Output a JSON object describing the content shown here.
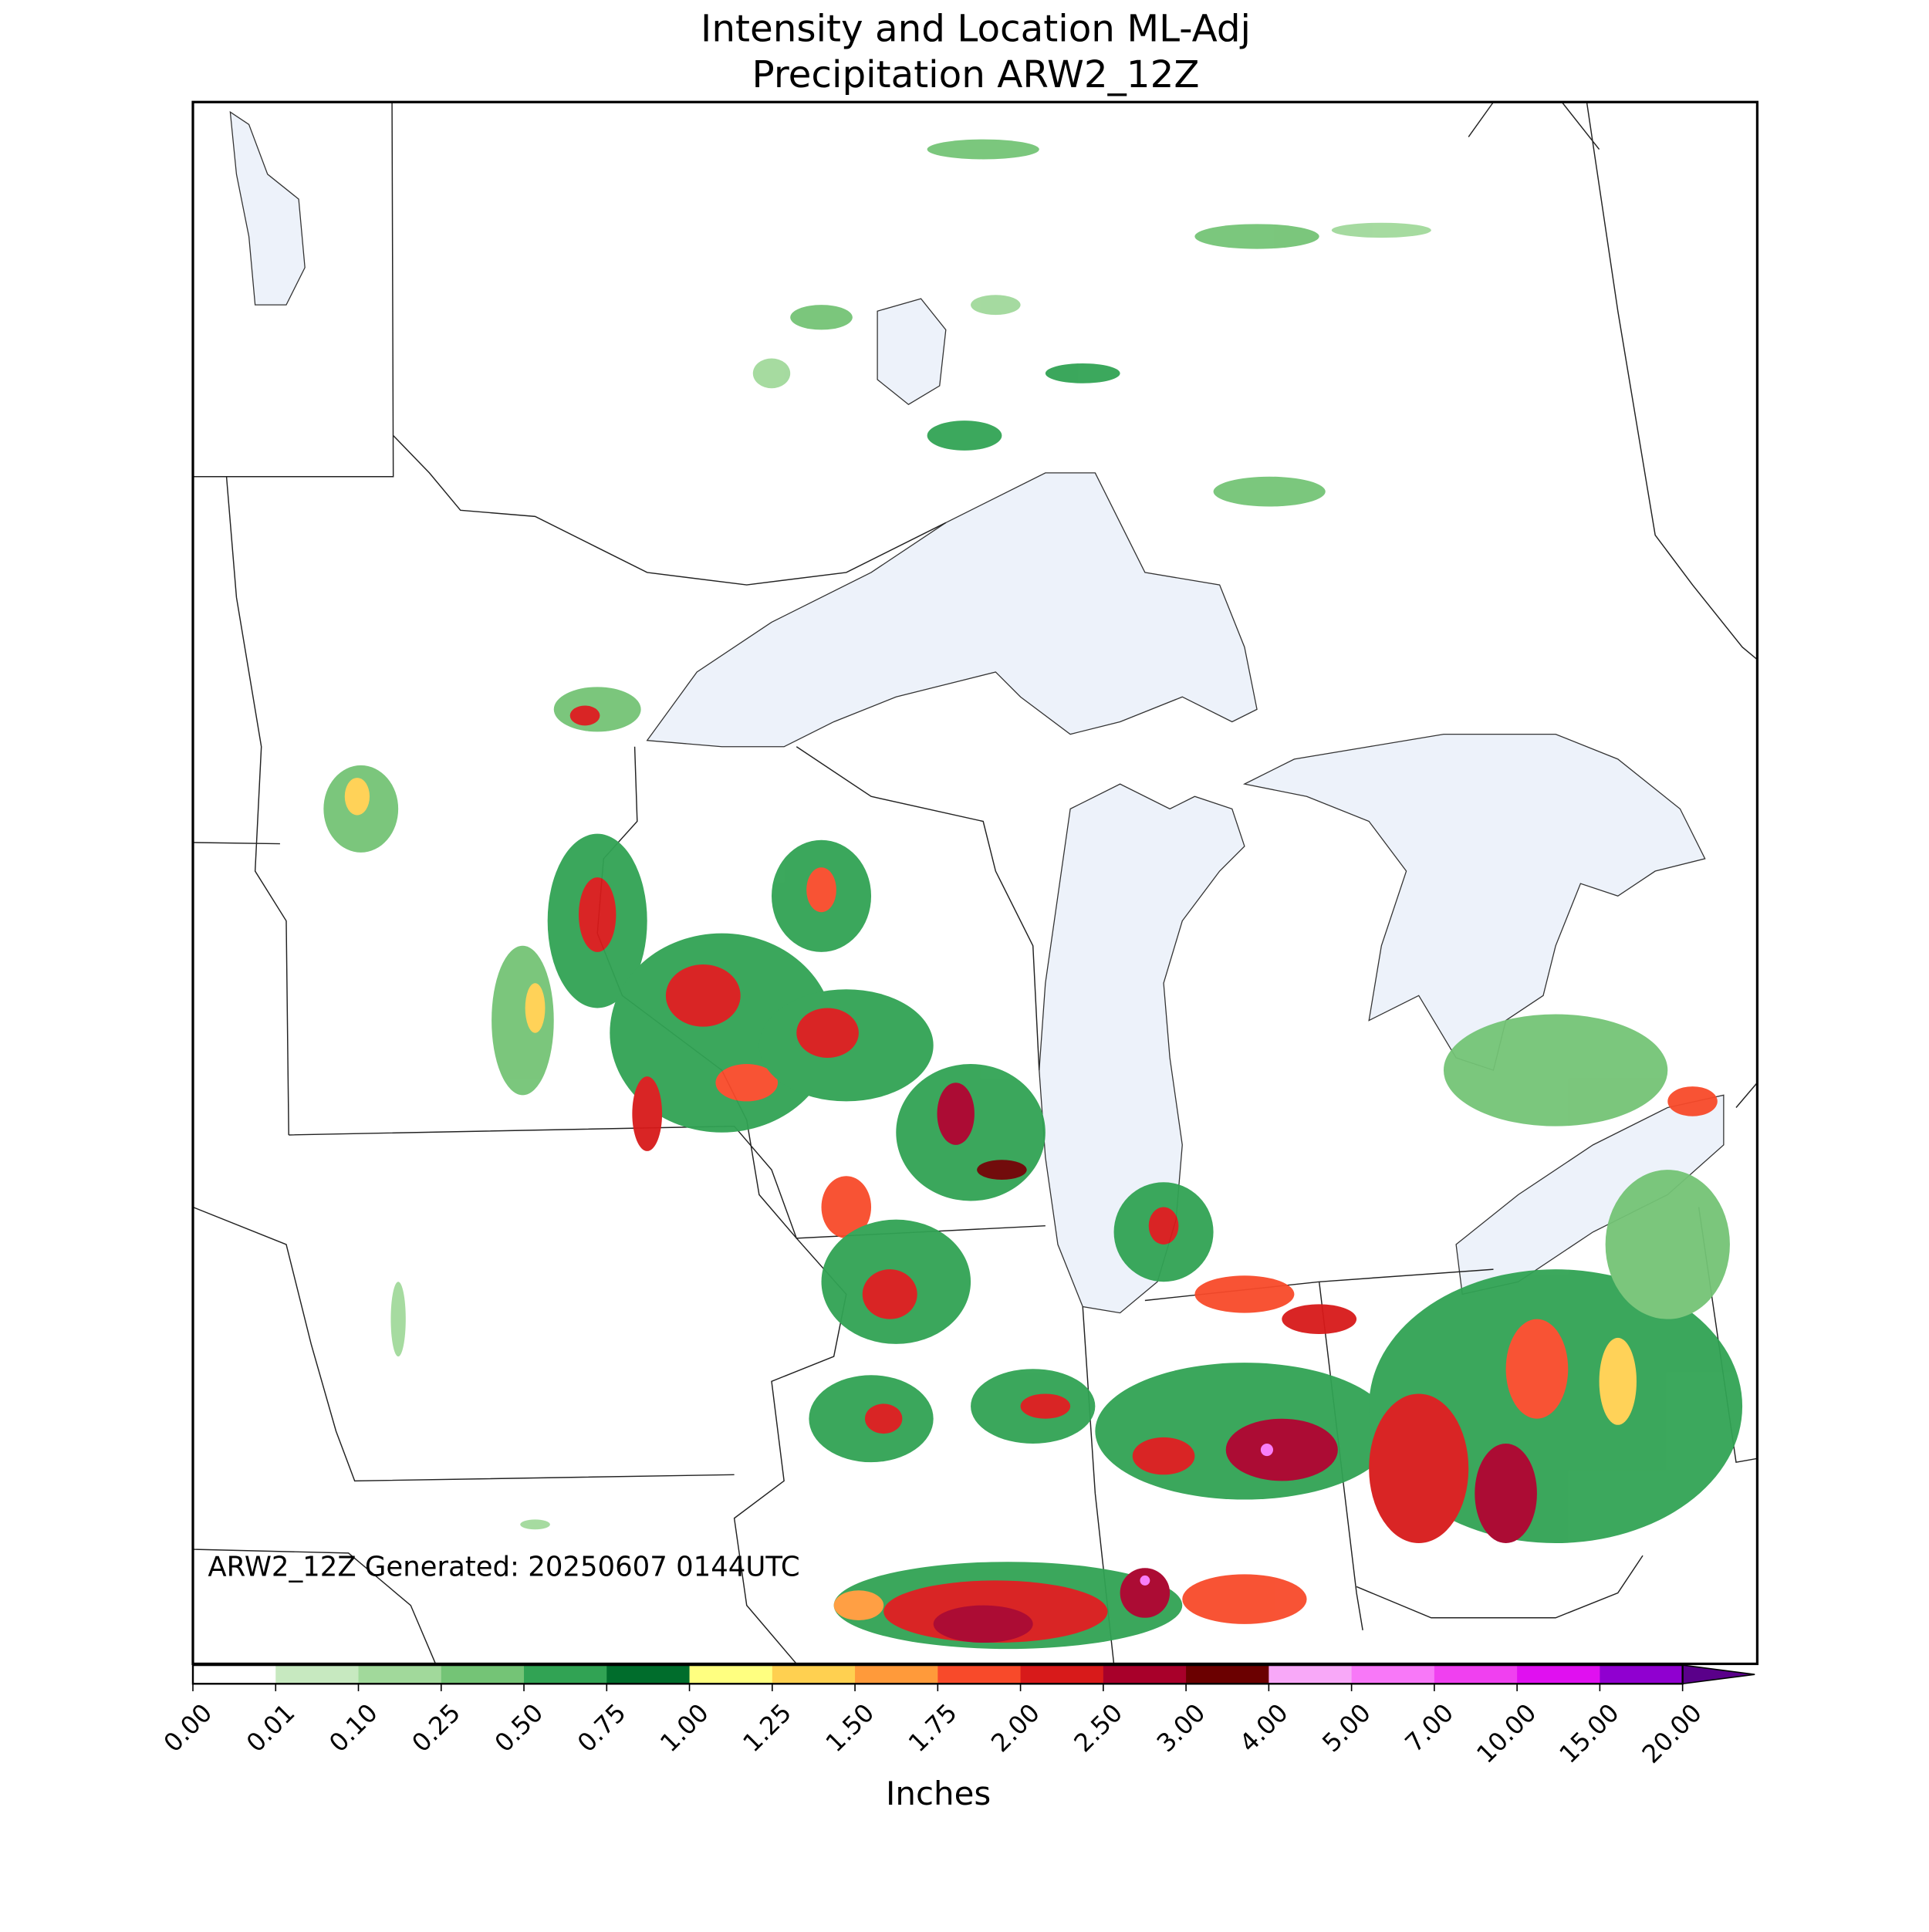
{
  "map": {
    "title": [
      "Intensity and Location ML-Adj",
      "Precipitation ARW2_12Z"
    ],
    "annotation": "ARW2_12Z Generated: 20250607 0144UTC",
    "colorbar": {
      "label": "Inches",
      "ticks": [
        {
          "value": 0,
          "label": "0.00"
        },
        {
          "value": 0.01,
          "label": "0.01"
        },
        {
          "value": 0.1,
          "label": "0.10"
        },
        {
          "value": 0.25,
          "label": "0.25"
        },
        {
          "value": 0.5,
          "label": "0.50"
        },
        {
          "value": 0.75,
          "label": "0.75"
        },
        {
          "value": 1,
          "label": "1.00"
        },
        {
          "value": 1.25,
          "label": "1.25"
        },
        {
          "value": 1.5,
          "label": "1.50"
        },
        {
          "value": 1.75,
          "label": "1.75"
        },
        {
          "value": 2,
          "label": "2.00"
        },
        {
          "value": 2.5,
          "label": "2.50"
        },
        {
          "value": 3,
          "label": "3.00"
        },
        {
          "value": 4,
          "label": "4.00"
        },
        {
          "value": 5,
          "label": "5.00"
        },
        {
          "value": 7,
          "label": "7.00"
        },
        {
          "value": 10,
          "label": "10.00"
        },
        {
          "value": 15,
          "label": "15.00"
        },
        {
          "value": 20,
          "label": "20.00"
        }
      ],
      "colors": [
        "#ffffff",
        "#c7e9c0",
        "#a1d99b",
        "#74c476",
        "#31a354",
        "#006d2c",
        "#ffff80",
        "#ffd050",
        "#ff9a3a",
        "#f84a2a",
        "#d81a1a",
        "#a8002a",
        "#6b0000",
        "#f8a8f8",
        "#f878f8",
        "#f040f0",
        "#e010f0",
        "#9000d0"
      ],
      "over_color": "#5a008a"
    }
  }
}
